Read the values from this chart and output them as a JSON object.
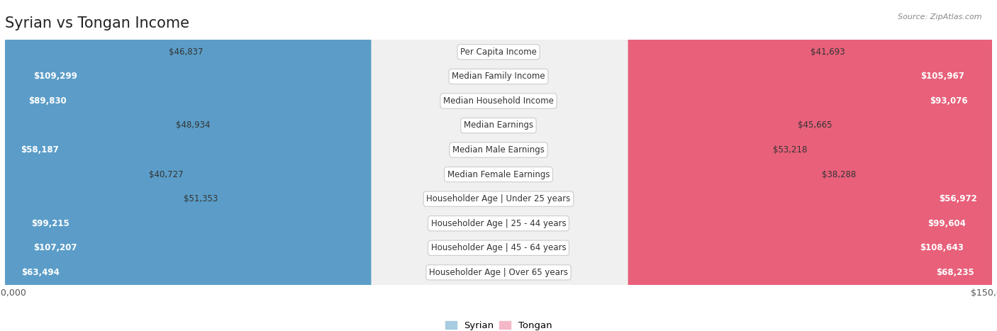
{
  "title": "Syrian vs Tongan Income",
  "source": "Source: ZipAtlas.com",
  "categories": [
    "Per Capita Income",
    "Median Family Income",
    "Median Household Income",
    "Median Earnings",
    "Median Male Earnings",
    "Median Female Earnings",
    "Householder Age | Under 25 years",
    "Householder Age | 25 - 44 years",
    "Householder Age | 45 - 64 years",
    "Householder Age | Over 65 years"
  ],
  "syrian_values": [
    46837,
    109299,
    89830,
    48934,
    58187,
    40727,
    51353,
    99215,
    107207,
    63494
  ],
  "tongan_values": [
    41693,
    105967,
    93076,
    45665,
    53218,
    38288,
    56972,
    99604,
    108643,
    68235
  ],
  "syrian_color_light": "#a8cce0",
  "syrian_color_dark": "#5b9dc8",
  "tongan_color_light": "#f5b8c8",
  "tongan_color_dark": "#e8607a",
  "max_value": 150000,
  "background_color": "#ffffff",
  "row_bg_color": "#f0f0f0",
  "row_border_color": "#d8d8d8",
  "label_bg_color": "#ffffff",
  "label_border_color": "#cccccc",
  "inside_label_threshold": 55000,
  "title_fontsize": 15,
  "label_fontsize": 8.5,
  "value_fontsize": 8.5,
  "legend_fontsize": 9.5,
  "axis_label_fontsize": 9
}
